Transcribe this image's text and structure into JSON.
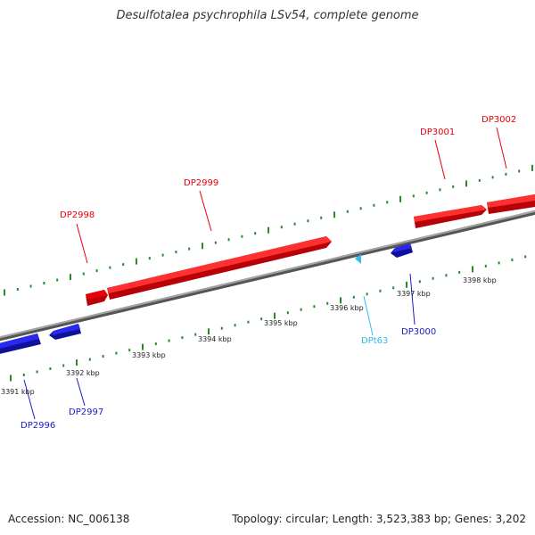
{
  "header": {
    "title": "Desulfotalea psychrophila LSv54, complete genome"
  },
  "footer": {
    "accession": "Accession: NC_006138",
    "summary": "Topology: circular; Length: 3,523,383 bp; Genes: 3,202"
  },
  "colors": {
    "forward_gene": "#e8000a",
    "reverse_gene": "#1a1acc",
    "trna": "#33bbee",
    "backbone": "#8a8a8a",
    "ticks": "#2a8a2a"
  },
  "genes": [
    {
      "id": "DP2996",
      "strand": "reverse",
      "type": "gene"
    },
    {
      "id": "DP2997",
      "strand": "reverse",
      "type": "gene"
    },
    {
      "id": "DP2998",
      "strand": "forward",
      "type": "gene"
    },
    {
      "id": "DP2999",
      "strand": "forward",
      "type": "gene"
    },
    {
      "id": "DPt63",
      "strand": "reverse",
      "type": "tRNA"
    },
    {
      "id": "DP3000",
      "strand": "reverse",
      "type": "gene"
    },
    {
      "id": "DP3001",
      "strand": "forward",
      "type": "gene"
    },
    {
      "id": "DP3002",
      "strand": "forward",
      "type": "gene"
    }
  ],
  "scale": {
    "labels": [
      "3391 kbp",
      "3392 kbp",
      "3393 kbp",
      "3394 kbp",
      "3395 kbp",
      "3396 kbp",
      "3397 kbp",
      "3398 kbp"
    ]
  }
}
